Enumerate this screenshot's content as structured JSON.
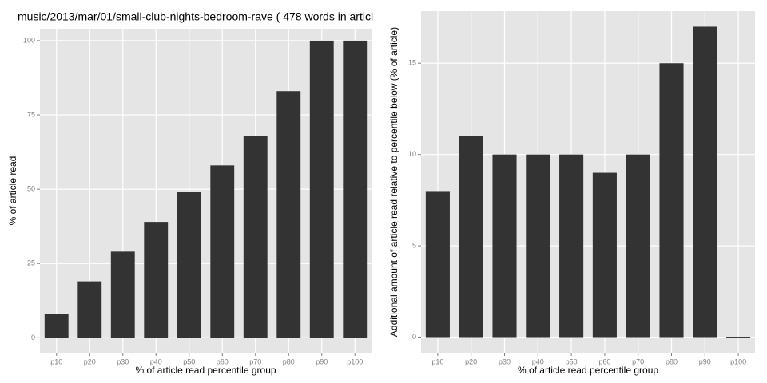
{
  "chart_data": [
    {
      "type": "bar",
      "title": "music/2013/mar/01/small-club-nights-bedroom-rave ( 478 words in articl",
      "x_label": "% of article read percentile group",
      "y_label": "% of article read",
      "categories": [
        "p10",
        "p20",
        "p30",
        "p40",
        "p50",
        "p60",
        "p70",
        "p80",
        "p90",
        "p100"
      ],
      "values": [
        8,
        19,
        29,
        39,
        49,
        58,
        68,
        83,
        100,
        100
      ],
      "color": "#333333",
      "ylim": [
        -5,
        104
      ],
      "yticks": [
        0,
        25,
        50,
        75,
        100
      ],
      "grid": true
    },
    {
      "type": "bar",
      "x_label": "% of article read percentile group",
      "y_label": "Additional amount of article read relative to percentile below (% of article)",
      "categories": [
        "p10",
        "p20",
        "p30",
        "p40",
        "p50",
        "p60",
        "p70",
        "p80",
        "p90",
        "p100"
      ],
      "values": [
        8,
        11,
        10,
        10,
        10,
        9,
        10,
        15,
        17,
        0
      ],
      "color": "#333333",
      "ylim": [
        -0.85,
        17.85
      ],
      "yticks": [
        0,
        5,
        10,
        15
      ],
      "grid": true
    }
  ]
}
